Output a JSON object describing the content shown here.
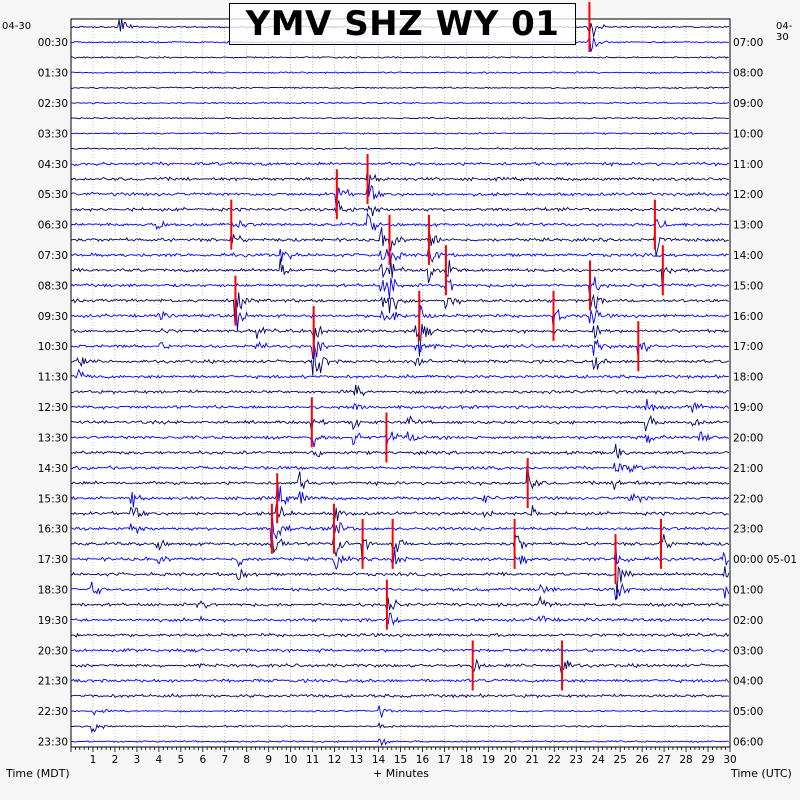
{
  "chart_data": {
    "type": "line",
    "title": "YMV SHZ WY 01",
    "start_date_left": "04-30",
    "start_date_right": "04-30",
    "xlabel": "+ Minutes",
    "ylabel_left": "Time (MDT)",
    "ylabel_right": "Time (UTC)",
    "xlim": [
      0,
      30
    ],
    "x_ticks": [
      "1",
      "2",
      "3",
      "4",
      "5",
      "6",
      "7",
      "8",
      "9",
      "10",
      "11",
      "12",
      "13",
      "14",
      "15",
      "16",
      "17",
      "18",
      "19",
      "20",
      "21",
      "22",
      "23",
      "24",
      "25",
      "26",
      "27",
      "28",
      "29",
      "30"
    ],
    "left_time_labels": [
      "00:30",
      "01:30",
      "02:30",
      "03:30",
      "04:30",
      "05:30",
      "06:30",
      "07:30",
      "08:30",
      "09:30",
      "10:30",
      "11:30",
      "12:30",
      "13:30",
      "14:30",
      "15:30",
      "16:30",
      "17:30",
      "18:30",
      "19:30",
      "20:30",
      "21:30",
      "22:30",
      "23:30"
    ],
    "right_time_labels": [
      "07:00",
      "08:00",
      "09:00",
      "10:00",
      "11:00",
      "12:00",
      "13:00",
      "14:00",
      "15:00",
      "16:00",
      "17:00",
      "18:00",
      "19:00",
      "20:00",
      "21:00",
      "22:00",
      "23:00",
      "00:00 05-01",
      "01:00",
      "02:00",
      "03:00",
      "04:00",
      "05:00",
      "06:00"
    ],
    "trace_rows": 48,
    "trace_colors": [
      "#000066",
      "#0000ff"
    ],
    "clip_color": "#ff0000",
    "grid": true
  }
}
